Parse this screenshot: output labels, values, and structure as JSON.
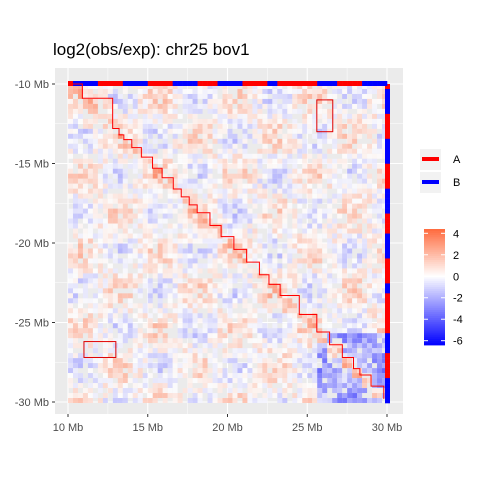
{
  "chart_data": {
    "type": "heatmap",
    "title": "log2(obs/exp): chr25 bov1",
    "x_ticks": [
      "10 Mb",
      "15 Mb",
      "20 Mb",
      "25 Mb",
      "30 Mb"
    ],
    "y_ticks": [
      "-10 Mb",
      "-15 Mb",
      "-20 Mb",
      "-25 Mb",
      "-30 Mb"
    ],
    "x_range_mb": [
      10,
      30
    ],
    "y_range_mb": [
      -10,
      -30
    ],
    "compartment_legend": [
      {
        "label": "A",
        "color": "#ff0000"
      },
      {
        "label": "B",
        "color": "#0000ff"
      }
    ],
    "colorbar": {
      "labels": [
        "4",
        "2",
        "0",
        "-2",
        "-4",
        "-6"
      ],
      "values": [
        4,
        2,
        0,
        -2,
        -4,
        -6
      ],
      "range": [
        -6.4,
        4.4
      ],
      "low_color": "#0000ff",
      "mid_color": "#ffffff",
      "high_color": "#ff6a3d"
    },
    "tad_boundaries_mb": [
      10.0,
      10.9,
      12.8,
      13.2,
      13.5,
      14.0,
      14.6,
      15.3,
      15.9,
      16.6,
      17.1,
      17.6,
      18.1,
      18.9,
      19.6,
      20.4,
      21.2,
      22.0,
      22.6,
      23.3,
      24.5,
      25.6,
      26.4,
      27.2,
      27.9,
      28.3,
      29.0,
      29.8
    ],
    "highlight_boxes_mb": [
      {
        "x": [
          25.6,
          26.6
        ],
        "y": [
          -11.0,
          -13.0
        ]
      },
      {
        "x": [
          11.0,
          13.0
        ],
        "y": [
          -26.2,
          -27.2
        ]
      }
    ],
    "grid": true,
    "legend_position": "right"
  }
}
